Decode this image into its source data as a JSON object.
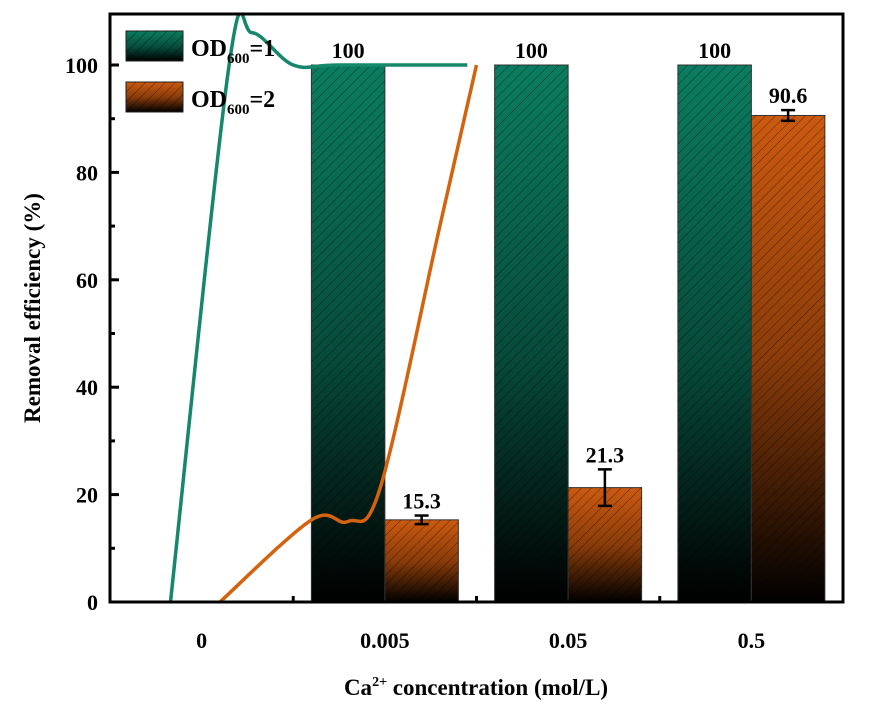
{
  "chart_data": {
    "type": "bar",
    "title": "",
    "xlabel": "Ca2+ concentration (mol/L)",
    "xlabel_parts": {
      "base": "Ca",
      "sup": "2+",
      "rest": " concentration (mol/L)"
    },
    "ylabel": "Removal efficiency (%)",
    "ylim": [
      0,
      110
    ],
    "yticks": [
      0,
      20,
      40,
      60,
      80,
      100
    ],
    "ytick_labels": [
      "0",
      "20",
      "40",
      "60",
      "80",
      "100"
    ],
    "categories": [
      "0",
      "0.005",
      "0.05",
      "0.5"
    ],
    "grid": false,
    "legend_position": "top-left",
    "series": [
      {
        "name": "OD600=1",
        "legend": {
          "base": "OD",
          "sub": "600",
          "rest": "=1"
        },
        "color": "#0a7a5e",
        "values": [
          0,
          100,
          100,
          100
        ],
        "errors": [
          0,
          0,
          0,
          0
        ],
        "data_labels": [
          "",
          "100",
          "100",
          "100"
        ]
      },
      {
        "name": "OD600=2",
        "legend": {
          "base": "OD",
          "sub": "600",
          "rest": "=2"
        },
        "color": "#c9560f",
        "values": [
          0,
          15.3,
          21.3,
          90.6
        ],
        "errors": [
          0,
          0.8,
          3.4,
          1.0
        ],
        "data_labels": [
          "",
          "15.3",
          "21.3",
          "90.6"
        ]
      }
    ],
    "trend_lines": [
      {
        "series": "OD600=1",
        "color": "#16876a",
        "points": [
          [
            -0.34,
            0
          ],
          [
            0.3,
            100
          ],
          [
            0.55,
            106
          ],
          [
            1.0,
            100
          ],
          [
            1.5,
            100
          ],
          [
            2.9,
            100
          ]
        ]
      },
      {
        "series": "OD600=2",
        "color": "#d4620f",
        "points": [
          [
            0.2,
            0
          ],
          [
            1.2,
            15.3
          ],
          [
            1.6,
            15
          ],
          [
            1.95,
            21.3
          ],
          [
            2.6,
            70
          ],
          [
            3.0,
            100
          ]
        ]
      }
    ]
  }
}
